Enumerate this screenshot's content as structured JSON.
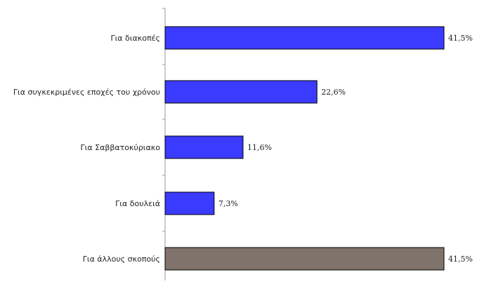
{
  "chart_data": {
    "type": "bar",
    "orientation": "horizontal",
    "categories": [
      "Για διακοπές",
      "Για συγκεκριμένες εποχές του χρόνου",
      "Για Σαββατοκύριακο",
      "Για δουλειά",
      "Για άλλους σκοπούς"
    ],
    "values": [
      41.5,
      22.6,
      11.6,
      7.3,
      41.5
    ],
    "value_labels": [
      "41,5%",
      "22,6%",
      "11,6%",
      "7,3%",
      "41,5%"
    ],
    "bar_colors": [
      "#3b3bff",
      "#3b3bff",
      "#3b3bff",
      "#3b3bff",
      "#7f736b"
    ],
    "title": "",
    "xlabel": "",
    "ylabel": "",
    "xlim": [
      0,
      41.5
    ],
    "grid": false,
    "legend": "none"
  },
  "colors": {
    "primary_bar": "#3b3bff",
    "other_bar": "#7f736b",
    "axis": "#9a9a9a",
    "bar_border": "#000000"
  }
}
